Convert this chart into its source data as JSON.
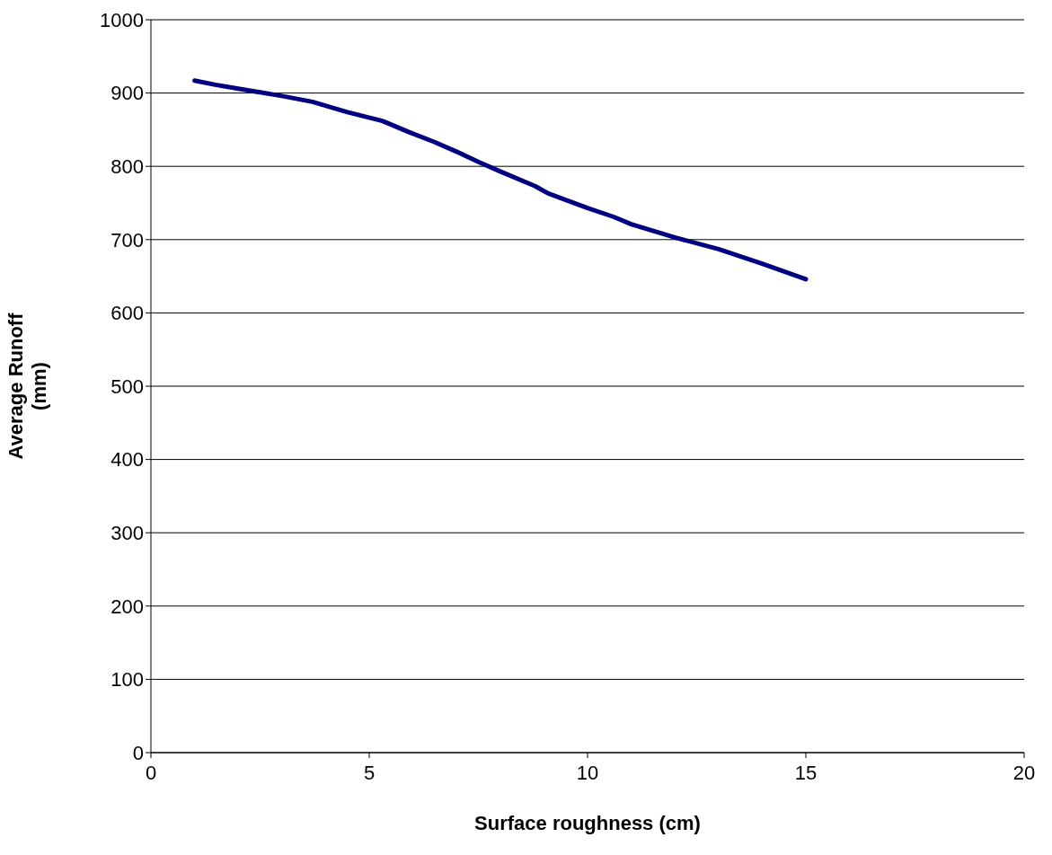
{
  "chart_data": {
    "type": "line",
    "xlabel": "Surface roughness (cm)",
    "ylabel": "Average Runoff\n(mm)",
    "x": [
      1,
      1.5,
      2,
      2.5,
      3,
      3.7,
      4.1,
      4.5,
      5.3,
      5.9,
      6.5,
      7,
      7.5,
      8,
      8.8,
      9.1,
      10,
      10.6,
      11,
      12,
      13,
      14,
      15
    ],
    "series": [
      {
        "color": "#000080",
        "values": [
          917,
          911,
          906,
          901,
          896,
          888,
          881,
          874,
          862,
          847,
          833,
          820,
          806,
          793,
          773,
          763,
          743,
          731,
          721,
          703,
          687,
          667,
          646
        ]
      }
    ],
    "xlim": [
      0,
      20
    ],
    "xticks": [
      0,
      5,
      10,
      15,
      20
    ],
    "ylim": [
      0,
      1000
    ],
    "yticks": [
      0,
      100,
      200,
      300,
      400,
      500,
      600,
      700,
      800,
      900,
      1000
    ],
    "grid": "y",
    "marker": "none",
    "line_style": "solid",
    "legend": false
  }
}
